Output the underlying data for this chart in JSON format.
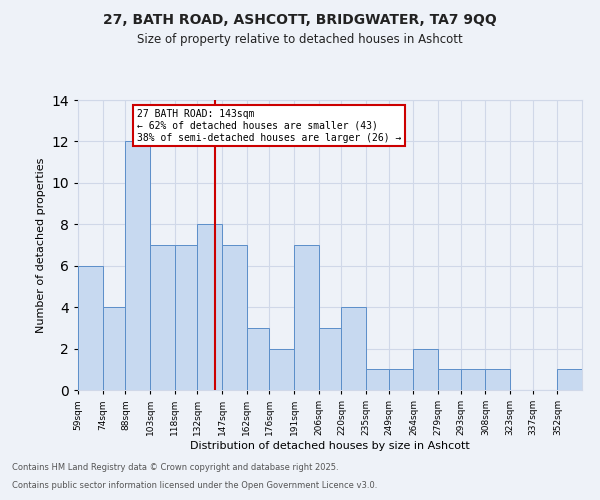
{
  "title1": "27, BATH ROAD, ASHCOTT, BRIDGWATER, TA7 9QQ",
  "title2": "Size of property relative to detached houses in Ashcott",
  "xlabel": "Distribution of detached houses by size in Ashcott",
  "ylabel": "Number of detached properties",
  "bin_labels": [
    "59sqm",
    "74sqm",
    "88sqm",
    "103sqm",
    "118sqm",
    "132sqm",
    "147sqm",
    "162sqm",
    "176sqm",
    "191sqm",
    "206sqm",
    "220sqm",
    "235sqm",
    "249sqm",
    "264sqm",
    "279sqm",
    "293sqm",
    "308sqm",
    "323sqm",
    "337sqm",
    "352sqm"
  ],
  "bin_edges": [
    59,
    74,
    88,
    103,
    118,
    132,
    147,
    162,
    176,
    191,
    206,
    220,
    235,
    249,
    264,
    279,
    293,
    308,
    323,
    337,
    352,
    367
  ],
  "values": [
    6,
    4,
    12,
    7,
    7,
    8,
    7,
    3,
    2,
    7,
    3,
    4,
    1,
    1,
    2,
    1,
    1,
    1,
    0,
    0,
    1
  ],
  "bar_facecolor": "#c7d9f0",
  "bar_edgecolor": "#5b8ec9",
  "grid_color": "#d0d8e8",
  "bg_color": "#eef2f8",
  "red_line_x": 143,
  "annotation_title": "27 BATH ROAD: 143sqm",
  "annotation_line1": "← 62% of detached houses are smaller (43)",
  "annotation_line2": "38% of semi-detached houses are larger (26) →",
  "annotation_box_color": "#ffffff",
  "annotation_box_edge": "#cc0000",
  "red_line_color": "#cc0000",
  "ylim": [
    0,
    14
  ],
  "yticks": [
    0,
    2,
    4,
    6,
    8,
    10,
    12,
    14
  ],
  "footer1": "Contains HM Land Registry data © Crown copyright and database right 2025.",
  "footer2": "Contains public sector information licensed under the Open Government Licence v3.0."
}
